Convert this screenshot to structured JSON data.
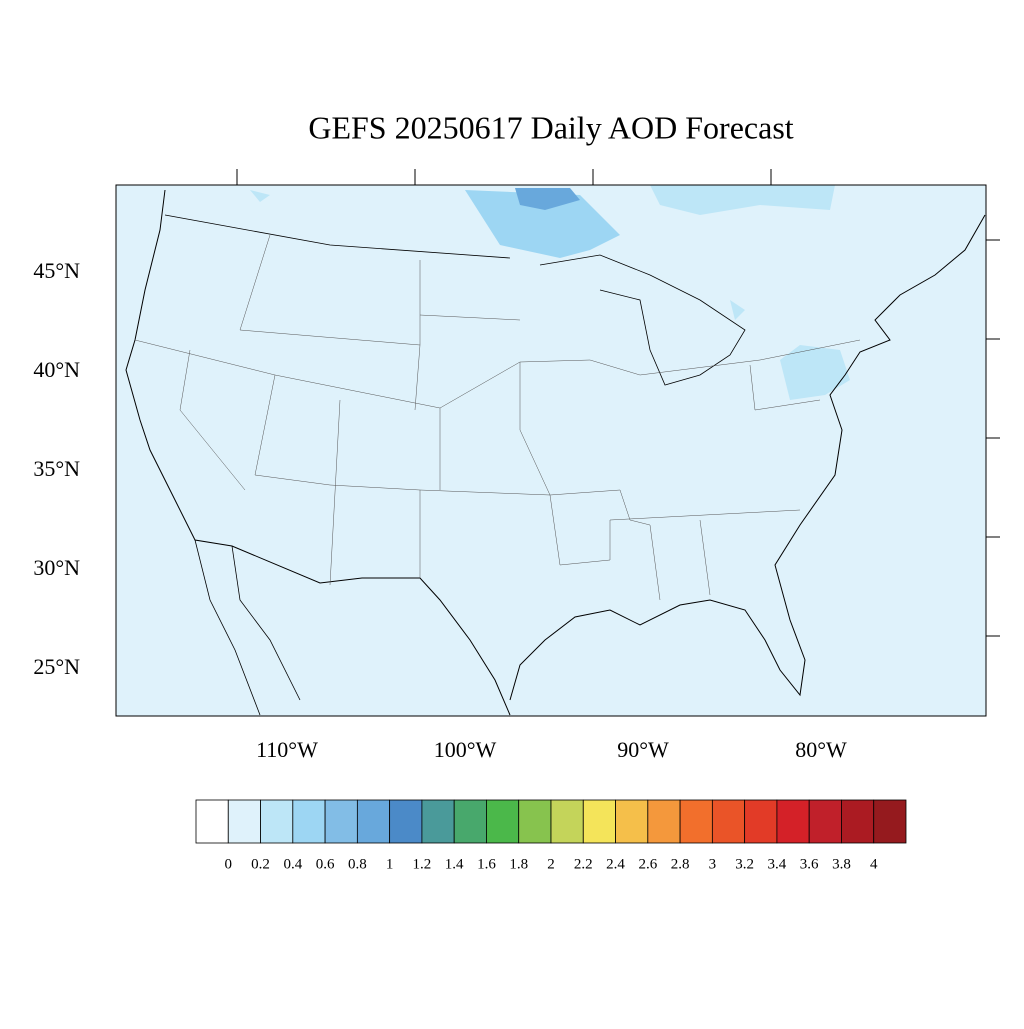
{
  "title": "GEFS 20250617 Daily AOD Forecast",
  "map": {
    "lat_ticks": [
      {
        "value": 25,
        "label": "25°N"
      },
      {
        "value": 30,
        "label": "30°N"
      },
      {
        "value": 35,
        "label": "35°N"
      },
      {
        "value": 40,
        "label": "40°N"
      },
      {
        "value": 45,
        "label": "45°N"
      }
    ],
    "lon_ticks": [
      {
        "value": -110,
        "label": "110°W"
      },
      {
        "value": -100,
        "label": "100°W"
      },
      {
        "value": -90,
        "label": "90°W"
      },
      {
        "value": -80,
        "label": "80°W"
      }
    ]
  },
  "colorbar": {
    "levels": [
      0,
      0.2,
      0.4,
      0.6,
      0.8,
      1,
      1.2,
      1.4,
      1.6,
      1.8,
      2,
      2.2,
      2.4,
      2.6,
      2.8,
      3,
      3.2,
      3.4,
      3.6,
      3.8,
      4
    ],
    "colors": [
      "#ffffff",
      "#dff2fb",
      "#bde6f7",
      "#9dd6f3",
      "#82bde6",
      "#68a8dc",
      "#4b8ac8",
      "#4a9a9a",
      "#48a86c",
      "#4bb84a",
      "#87c34e",
      "#c4d45a",
      "#f4e45a",
      "#f5bf4a",
      "#f4983c",
      "#f26f2c",
      "#ea5428",
      "#e23b27",
      "#d42128",
      "#c0202a",
      "#ab1b22",
      "#951a1e"
    ]
  }
}
